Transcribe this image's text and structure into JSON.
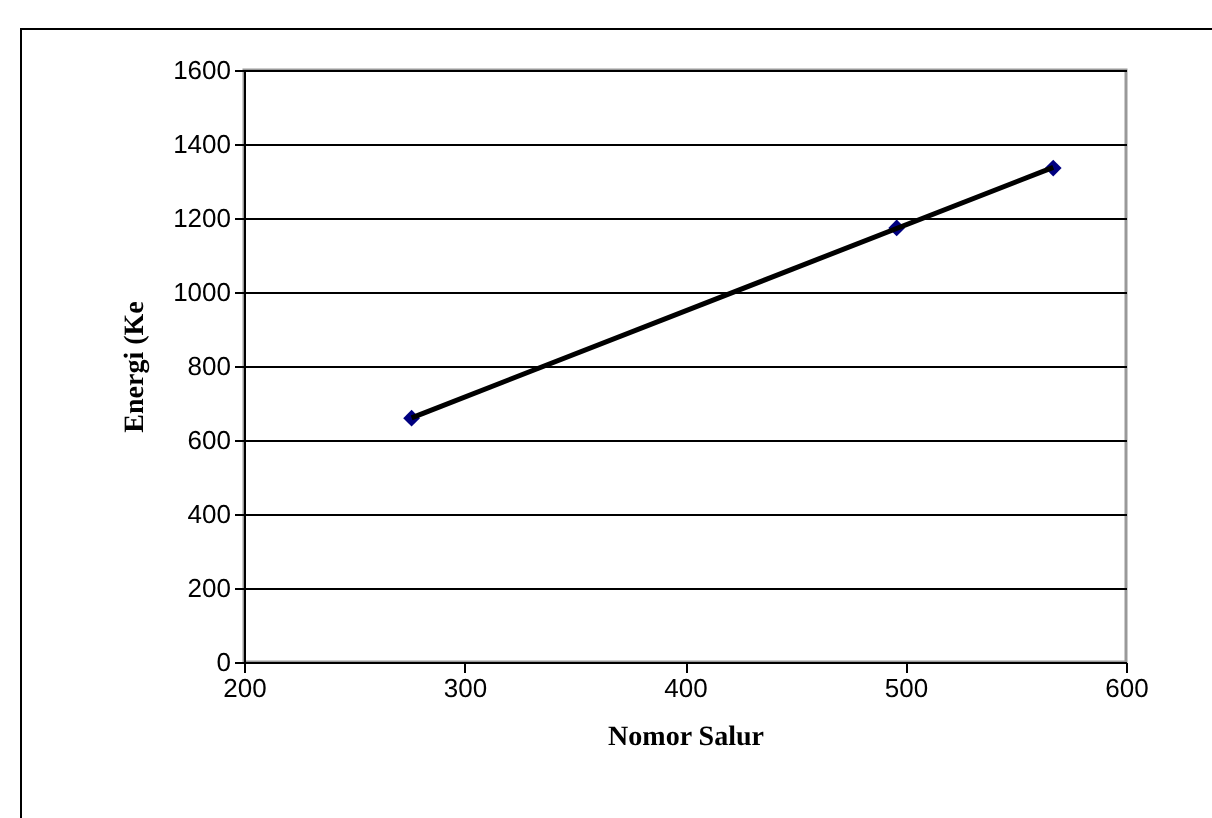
{
  "chart_data": {
    "type": "scatter",
    "xlabel": "Nomor Salur",
    "ylabel": "Energi (Ke",
    "marker": "diamond",
    "grid": "y",
    "xlim": [
      200,
      600
    ],
    "xticks": [
      200,
      300,
      400,
      500,
      600
    ],
    "ylim": [
      0,
      1600
    ],
    "yticks": [
      0,
      200,
      400,
      600,
      800,
      1000,
      1200,
      1400,
      1600
    ],
    "series": [
      {
        "color": "#000080",
        "x": [
          276,
          496,
          567
        ],
        "values": [
          659,
          1173,
          1335
        ]
      },
      {
        "type": "line",
        "marker": "none",
        "color": "#000000",
        "x": [
          276,
          567
        ],
        "values": [
          660,
          1337
        ]
      }
    ]
  }
}
